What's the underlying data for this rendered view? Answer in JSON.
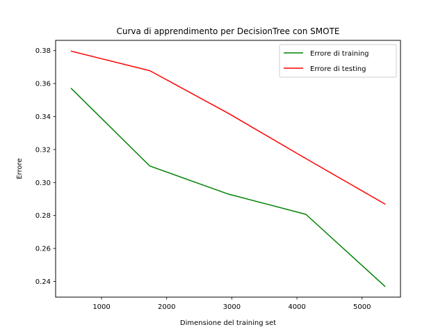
{
  "chart_data": {
    "type": "line",
    "title": "Curva di apprendimento per DecisionTree con SMOTE",
    "xlabel": "Dimensione del training set",
    "ylabel": "Errore",
    "xlim": [
      295,
      5590
    ],
    "ylim": [
      0.2305,
      0.3862
    ],
    "xticks": [
      1000,
      2000,
      3000,
      4000,
      5000
    ],
    "yticks": [
      0.24,
      0.26,
      0.28,
      0.3,
      0.32,
      0.34,
      0.36,
      0.38
    ],
    "xtick_labels": [
      "1000",
      "2000",
      "3000",
      "4000",
      "5000"
    ],
    "ytick_labels": [
      "0.24",
      "0.26",
      "0.28",
      "0.30",
      "0.32",
      "0.34",
      "0.36",
      "0.38"
    ],
    "grid": false,
    "legend_position": "top-right",
    "series": [
      {
        "name": "Errore di training",
        "color": "#008000",
        "x": [
          536,
          1741,
          2946,
          4137,
          5350
        ],
        "y": [
          0.357,
          0.31,
          0.293,
          0.2807,
          0.2371
        ]
      },
      {
        "name": "Errore di testing",
        "color": "#ff0000",
        "x": [
          536,
          1741,
          2946,
          4137,
          5350
        ],
        "y": [
          0.3796,
          0.3678,
          0.342,
          0.3145,
          0.287
        ]
      }
    ]
  }
}
